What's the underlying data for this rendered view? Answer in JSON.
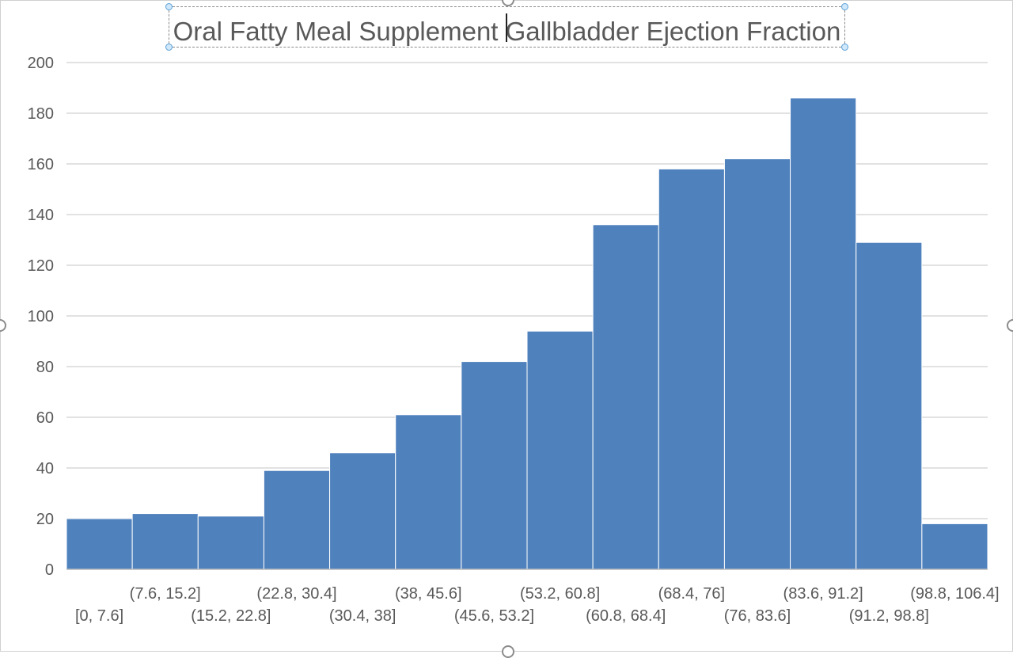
{
  "chart_data": {
    "type": "bar",
    "title": "Oral Fatty Meal Supplement Gallbladder Ejection Fraction",
    "xlabel": "",
    "ylabel": "",
    "categories": [
      "[0, 7.6]",
      "(7.6, 15.2]",
      "(15.2, 22.8]",
      "(22.8, 30.4]",
      "(30.4, 38]",
      "(38, 45.6]",
      "(45.6, 53.2]",
      "(53.2, 60.8]",
      "(60.8, 68.4]",
      "(68.4, 76]",
      "(76, 83.6]",
      "(83.6, 91.2]",
      "(91.2, 98.8]",
      "(98.8, 106.4]"
    ],
    "values": [
      20,
      22,
      21,
      39,
      46,
      61,
      82,
      94,
      136,
      158,
      162,
      186,
      129,
      18
    ],
    "ylim": [
      0,
      200
    ],
    "yticks": [
      0,
      20,
      40,
      60,
      80,
      100,
      120,
      140,
      160,
      180,
      200
    ],
    "grid": true,
    "legend": "none",
    "colors": {
      "bar": "#4f81bd",
      "bar_edge": "#ffffff",
      "grid": "#d9d9d9",
      "tick_text": "#595959"
    }
  }
}
